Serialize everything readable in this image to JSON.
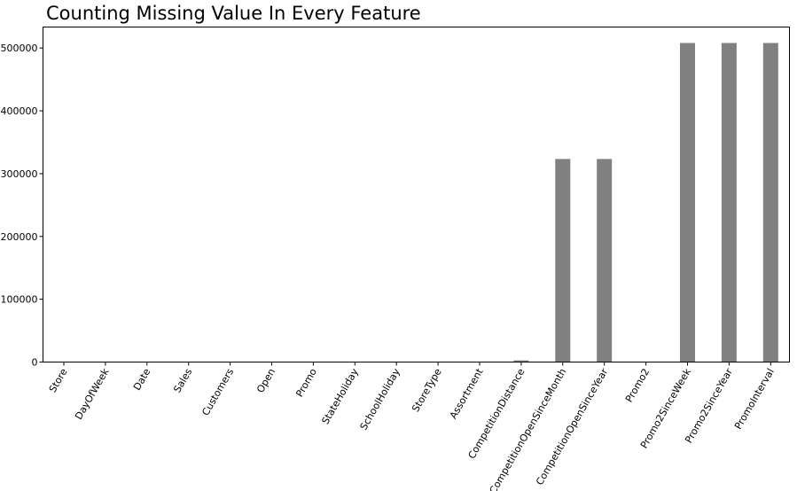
{
  "chart_data": {
    "type": "bar",
    "title": "Counting Missing Value In Every Feature",
    "categories": [
      "Store",
      "DayOfWeek",
      "Date",
      "Sales",
      "Customers",
      "Open",
      "Promo",
      "StateHoliday",
      "SchoolHoliday",
      "StoreType",
      "Assortment",
      "CompetitionDistance",
      "CompetitionOpenSinceMonth",
      "CompetitionOpenSinceYear",
      "Promo2",
      "Promo2SinceWeek",
      "Promo2SinceYear",
      "PromoInterval"
    ],
    "values": [
      0,
      0,
      0,
      0,
      0,
      0,
      0,
      0,
      0,
      0,
      0,
      2642,
      323348,
      323348,
      0,
      508031,
      508031,
      508031
    ],
    "ylim": [
      0,
      533433
    ],
    "yticks": [
      0,
      100000,
      200000,
      300000,
      400000,
      500000
    ],
    "ytick_labels": [
      "0",
      "100000",
      "200000",
      "300000",
      "400000",
      "500000"
    ],
    "bar_color": "#808080",
    "grid": false,
    "legend": "none"
  }
}
